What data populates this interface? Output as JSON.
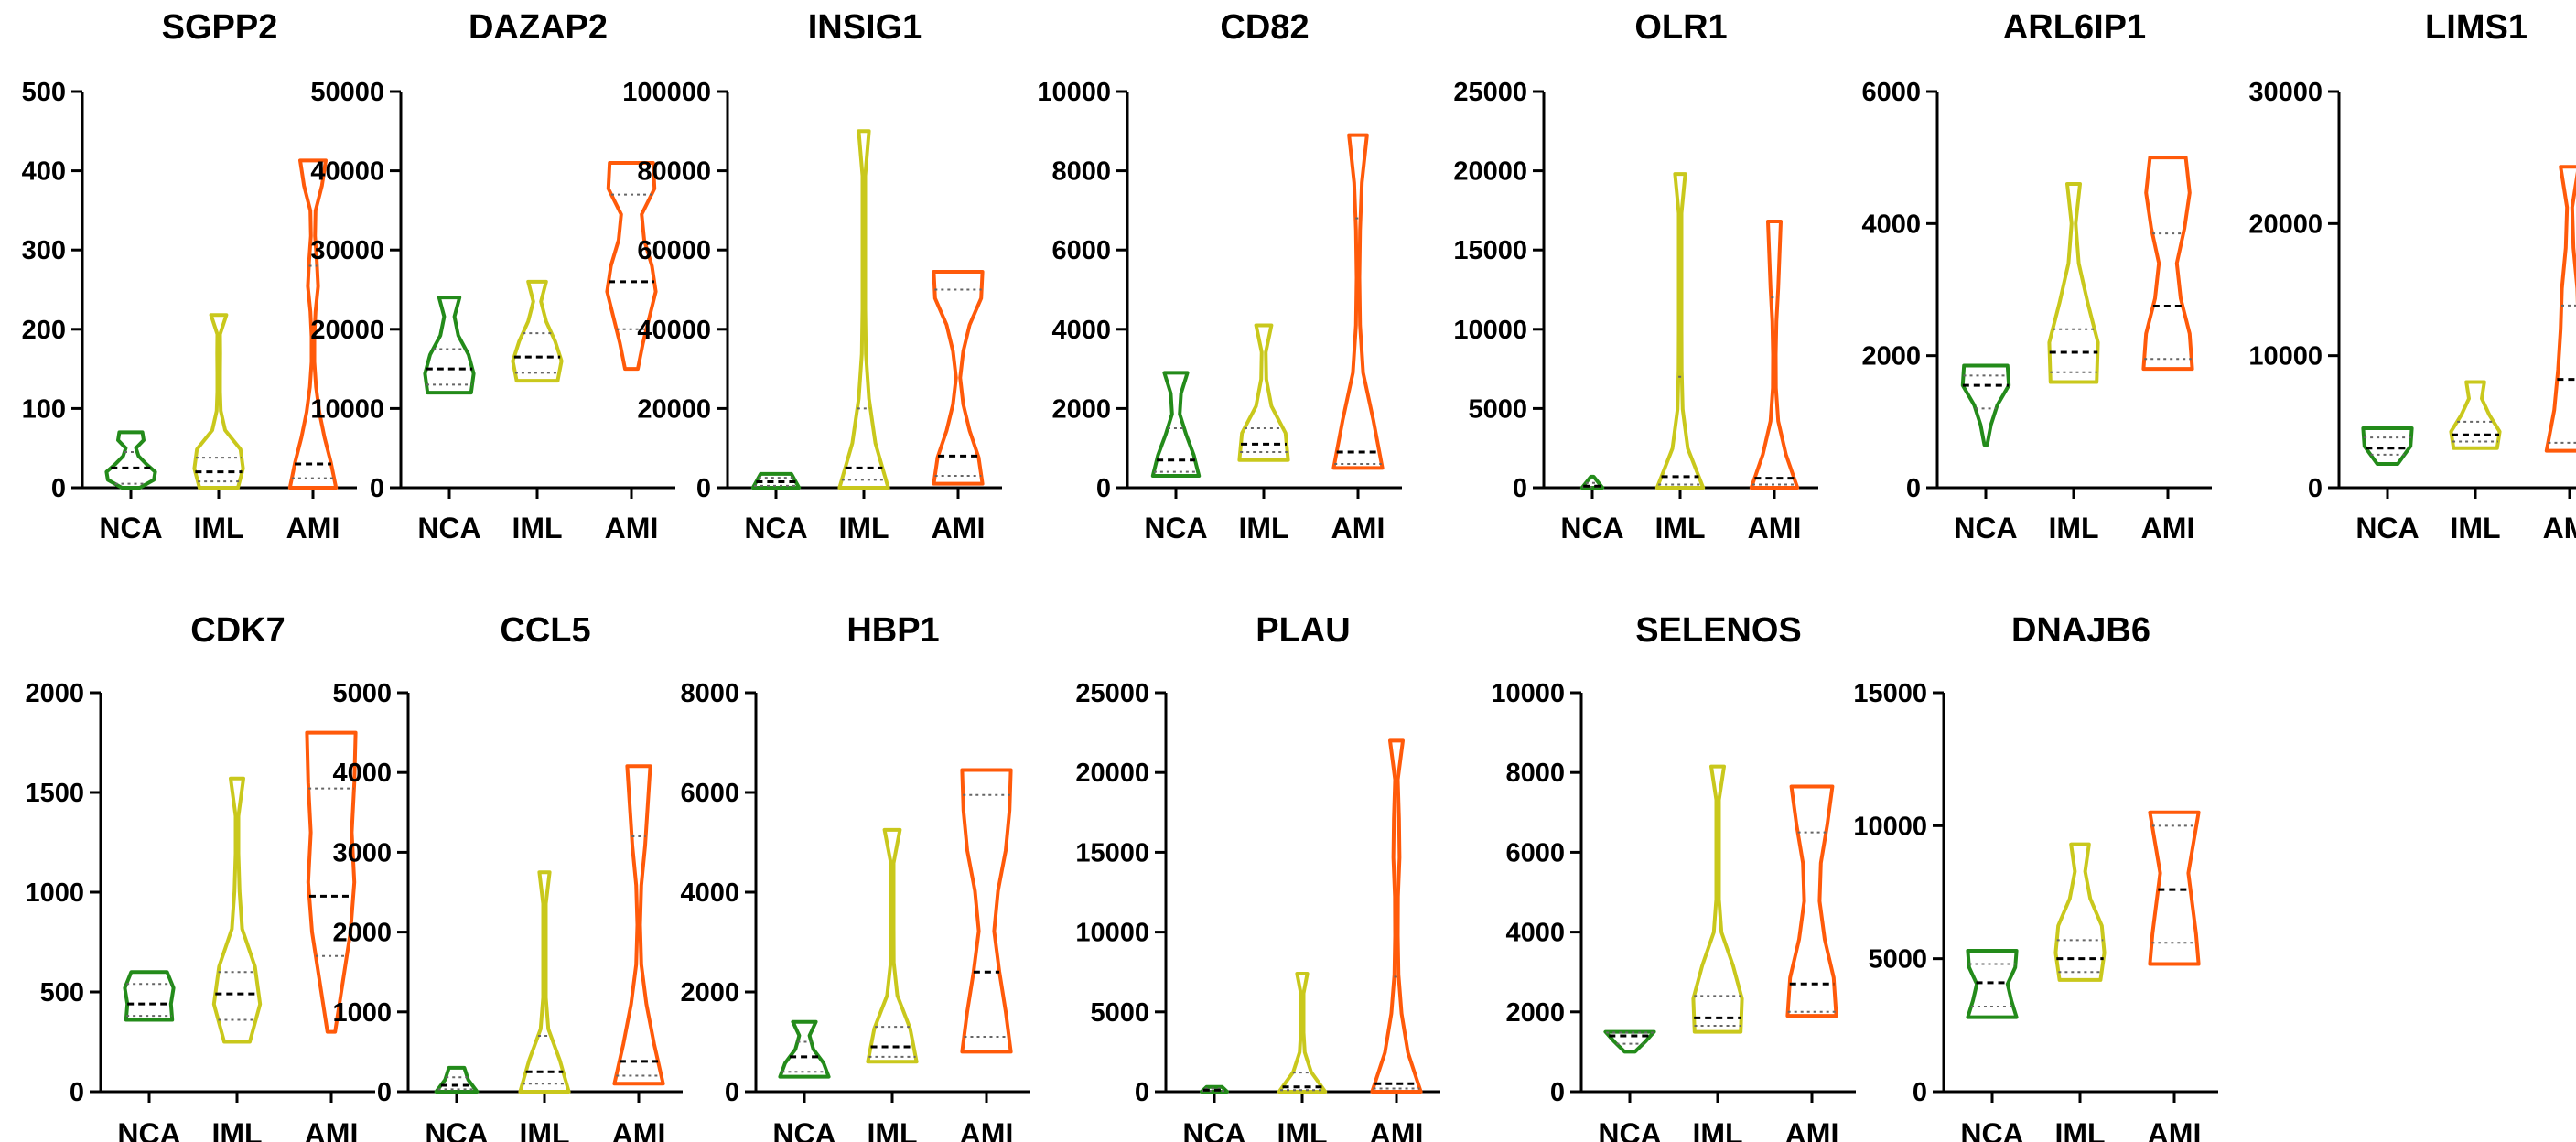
{
  "chart_data": [
    {
      "type": "violin",
      "title": "SGPP2",
      "categories": [
        "NCA",
        "IML",
        "AMI"
      ],
      "colors": [
        "#238b1a",
        "#c9c81c",
        "#ff5a0a"
      ],
      "ylim": [
        0,
        500
      ],
      "yticks": [
        0,
        100,
        200,
        300,
        400,
        500
      ],
      "series": [
        {
          "name": "NCA",
          "min": 0,
          "max": 70,
          "median": 25,
          "q1": 5,
          "q3": 45,
          "widths": [
            0.35,
            0.9,
            0.95,
            0.6,
            0.3,
            0.2,
            0.5,
            0.45
          ]
        },
        {
          "name": "IML",
          "min": 0,
          "max": 218,
          "median": 20,
          "q1": 8,
          "q3": 38,
          "widths": [
            0.75,
            0.95,
            0.85,
            0.25,
            0.08,
            0.05,
            0.04,
            0.06,
            0.05,
            0.3
          ]
        },
        {
          "name": "AMI",
          "min": 0,
          "max": 413,
          "median": 30,
          "q1": 12,
          "q3": 280,
          "widths": [
            0.9,
            0.7,
            0.45,
            0.25,
            0.12,
            0.05,
            0.04,
            0.1,
            0.2,
            0.15,
            0.08,
            0.1,
            0.35,
            0.5
          ]
        }
      ]
    },
    {
      "type": "violin",
      "title": "DAZAP2",
      "categories": [
        "NCA",
        "IML",
        "AMI"
      ],
      "colors": [
        "#238b1a",
        "#c9c81c",
        "#ff5a0a"
      ],
      "ylim": [
        0,
        50000
      ],
      "yticks": [
        0,
        10000,
        20000,
        30000,
        40000,
        50000
      ],
      "series": [
        {
          "name": "NCA",
          "min": 12000,
          "max": 24000,
          "median": 15000,
          "q1": 13000,
          "q3": 17500,
          "widths": [
            0.85,
            0.95,
            0.75,
            0.35,
            0.2,
            0.4
          ]
        },
        {
          "name": "IML",
          "min": 13500,
          "max": 26000,
          "median": 16500,
          "q1": 14500,
          "q3": 19500,
          "widths": [
            0.8,
            0.95,
            0.7,
            0.35,
            0.15,
            0.35
          ]
        },
        {
          "name": "AMI",
          "min": 15000,
          "max": 41000,
          "median": 26000,
          "q1": 20000,
          "q3": 37000,
          "widths": [
            0.25,
            0.45,
            0.7,
            0.95,
            0.8,
            0.5,
            0.4,
            0.9,
            0.85
          ]
        }
      ]
    },
    {
      "type": "violin",
      "title": "INSIG1",
      "categories": [
        "NCA",
        "IML",
        "AMI"
      ],
      "colors": [
        "#238b1a",
        "#c9c81c",
        "#ff5a0a"
      ],
      "ylim": [
        0,
        100000
      ],
      "yticks": [
        0,
        20000,
        40000,
        60000,
        80000,
        100000
      ],
      "series": [
        {
          "name": "NCA",
          "min": 0,
          "max": 3500,
          "median": 1500,
          "q1": 500,
          "q3": 2500,
          "widths": [
            0.9,
            0.6
          ]
        },
        {
          "name": "IML",
          "min": 0,
          "max": 90000,
          "median": 5000,
          "q1": 2000,
          "q3": 20000,
          "widths": [
            0.95,
            0.45,
            0.2,
            0.08,
            0.04,
            0.03,
            0.03,
            0.04,
            0.2
          ]
        },
        {
          "name": "AMI",
          "min": 1000,
          "max": 54500,
          "median": 8000,
          "q1": 3000,
          "q3": 50000,
          "widths": [
            0.95,
            0.8,
            0.45,
            0.2,
            0.08,
            0.2,
            0.45,
            0.9,
            0.95
          ]
        }
      ]
    },
    {
      "type": "violin",
      "title": "CD82",
      "categories": [
        "NCA",
        "IML",
        "AMI"
      ],
      "colors": [
        "#238b1a",
        "#c9c81c",
        "#ff5a0a"
      ],
      "ylim": [
        0,
        10000
      ],
      "yticks": [
        0,
        2000,
        4000,
        6000,
        8000,
        10000
      ],
      "series": [
        {
          "name": "NCA",
          "min": 300,
          "max": 2900,
          "median": 700,
          "q1": 400,
          "q3": 1500,
          "widths": [
            0.9,
            0.7,
            0.4,
            0.15,
            0.2,
            0.45
          ]
        },
        {
          "name": "IML",
          "min": 700,
          "max": 4100,
          "median": 1100,
          "q1": 900,
          "q3": 1500,
          "widths": [
            0.95,
            0.85,
            0.3,
            0.1,
            0.08,
            0.3
          ]
        },
        {
          "name": "AMI",
          "min": 500,
          "max": 8900,
          "median": 900,
          "q1": 600,
          "q3": 6800,
          "widths": [
            0.95,
            0.6,
            0.2,
            0.08,
            0.05,
            0.08,
            0.15,
            0.35
          ]
        }
      ]
    },
    {
      "type": "violin",
      "title": "OLR1",
      "categories": [
        "NCA",
        "IML",
        "AMI"
      ],
      "colors": [
        "#238b1a",
        "#c9c81c",
        "#ff5a0a"
      ],
      "ylim": [
        0,
        25000
      ],
      "yticks": [
        0,
        5000,
        10000,
        15000,
        20000,
        25000
      ],
      "series": [
        {
          "name": "NCA",
          "min": 0,
          "max": 700,
          "median": 100,
          "q1": 50,
          "q3": 300,
          "widths": [
            0.4,
            0.05
          ]
        },
        {
          "name": "IML",
          "min": 0,
          "max": 19800,
          "median": 700,
          "q1": 200,
          "q3": 7000,
          "widths": [
            0.9,
            0.3,
            0.1,
            0.06,
            0.04,
            0.04,
            0.03,
            0.04,
            0.2
          ]
        },
        {
          "name": "AMI",
          "min": 0,
          "max": 16800,
          "median": 600,
          "q1": 200,
          "q3": 12000,
          "widths": [
            0.9,
            0.45,
            0.15,
            0.06,
            0.05,
            0.08,
            0.15,
            0.2,
            0.25
          ]
        }
      ]
    },
    {
      "type": "violin",
      "title": "ARL6IP1",
      "categories": [
        "NCA",
        "IML",
        "AMI"
      ],
      "colors": [
        "#238b1a",
        "#c9c81c",
        "#ff5a0a"
      ],
      "ylim": [
        0,
        6000
      ],
      "yticks": [
        0,
        2000,
        4000,
        6000
      ],
      "series": [
        {
          "name": "NCA",
          "min": 650,
          "max": 1850,
          "median": 1550,
          "q1": 1200,
          "q3": 1700,
          "widths": [
            0.05,
            0.2,
            0.45,
            0.9,
            0.85
          ]
        },
        {
          "name": "IML",
          "min": 1600,
          "max": 4600,
          "median": 2050,
          "q1": 1750,
          "q3": 2400,
          "widths": [
            0.9,
            0.95,
            0.55,
            0.2,
            0.08,
            0.25
          ]
        },
        {
          "name": "AMI",
          "min": 1800,
          "max": 5000,
          "median": 2750,
          "q1": 1950,
          "q3": 3850,
          "widths": [
            0.95,
            0.85,
            0.5,
            0.35,
            0.65,
            0.85,
            0.7
          ]
        }
      ]
    },
    {
      "type": "violin",
      "title": "LIMS1",
      "categories": [
        "NCA",
        "IML",
        "AMI"
      ],
      "colors": [
        "#238b1a",
        "#c9c81c",
        "#ff5a0a"
      ],
      "ylim": [
        0,
        30000
      ],
      "yticks": [
        0,
        10000,
        20000,
        30000
      ],
      "series": [
        {
          "name": "NCA",
          "min": 1800,
          "max": 4500,
          "median": 3000,
          "q1": 2500,
          "q3": 3800,
          "widths": [
            0.4,
            0.9,
            0.95
          ]
        },
        {
          "name": "IML",
          "min": 3000,
          "max": 8000,
          "median": 4000,
          "q1": 3500,
          "q3": 5000,
          "widths": [
            0.85,
            0.95,
            0.55,
            0.25,
            0.35
          ]
        },
        {
          "name": "AMI",
          "min": 2800,
          "max": 24300,
          "median": 8200,
          "q1": 3400,
          "q3": 13800,
          "widths": [
            0.9,
            0.6,
            0.45,
            0.35,
            0.3,
            0.15,
            0.1,
            0.35
          ]
        }
      ]
    },
    {
      "type": "violin",
      "title": "CDK7",
      "categories": [
        "NCA",
        "IML",
        "AMI"
      ],
      "colors": [
        "#238b1a",
        "#c9c81c",
        "#ff5a0a"
      ],
      "ylim": [
        0,
        2000
      ],
      "yticks": [
        0,
        500,
        1000,
        1500,
        2000
      ],
      "series": [
        {
          "name": "NCA",
          "min": 360,
          "max": 600,
          "median": 440,
          "q1": 380,
          "q3": 540,
          "widths": [
            0.9,
            0.85,
            0.95,
            0.7
          ]
        },
        {
          "name": "IML",
          "min": 250,
          "max": 1570,
          "median": 490,
          "q1": 360,
          "q3": 600,
          "widths": [
            0.5,
            0.9,
            0.7,
            0.2,
            0.1,
            0.05,
            0.05,
            0.25
          ]
        },
        {
          "name": "AMI",
          "min": 300,
          "max": 1800,
          "median": 980,
          "q1": 680,
          "q3": 1520,
          "widths": [
            0.15,
            0.45,
            0.75,
            0.9,
            0.8,
            0.9,
            0.95
          ]
        }
      ]
    },
    {
      "type": "violin",
      "title": "CCL5",
      "categories": [
        "NCA",
        "IML",
        "AMI"
      ],
      "colors": [
        "#238b1a",
        "#c9c81c",
        "#ff5a0a"
      ],
      "ylim": [
        0,
        5000
      ],
      "yticks": [
        0,
        1000,
        2000,
        3000,
        4000,
        5000
      ],
      "series": [
        {
          "name": "NCA",
          "min": 0,
          "max": 300,
          "median": 80,
          "q1": 30,
          "q3": 180,
          "widths": [
            0.8,
            0.45,
            0.3
          ]
        },
        {
          "name": "IML",
          "min": 0,
          "max": 2750,
          "median": 250,
          "q1": 100,
          "q3": 700,
          "widths": [
            0.95,
            0.6,
            0.15,
            0.05,
            0.04,
            0.03,
            0.04,
            0.2
          ]
        },
        {
          "name": "AMI",
          "min": 100,
          "max": 4080,
          "median": 380,
          "q1": 200,
          "q3": 3200,
          "widths": [
            0.95,
            0.6,
            0.3,
            0.1,
            0.05,
            0.1,
            0.25,
            0.35,
            0.45
          ]
        }
      ]
    },
    {
      "type": "violin",
      "title": "HBP1",
      "categories": [
        "NCA",
        "IML",
        "AMI"
      ],
      "colors": [
        "#238b1a",
        "#c9c81c",
        "#ff5a0a"
      ],
      "ylim": [
        0,
        8000
      ],
      "yticks": [
        0,
        2000,
        4000,
        6000,
        8000
      ],
      "series": [
        {
          "name": "NCA",
          "min": 300,
          "max": 1400,
          "median": 700,
          "q1": 400,
          "q3": 1000,
          "widths": [
            0.95,
            0.75,
            0.35,
            0.2,
            0.45
          ]
        },
        {
          "name": "IML",
          "min": 600,
          "max": 5250,
          "median": 900,
          "q1": 700,
          "q3": 1300,
          "widths": [
            0.95,
            0.7,
            0.2,
            0.06,
            0.04,
            0.04,
            0.04,
            0.3
          ]
        },
        {
          "name": "AMI",
          "min": 800,
          "max": 6450,
          "median": 2400,
          "q1": 1100,
          "q3": 5950,
          "widths": [
            0.95,
            0.75,
            0.5,
            0.3,
            0.45,
            0.75,
            0.9,
            0.95
          ]
        }
      ]
    },
    {
      "type": "violin",
      "title": "PLAU",
      "categories": [
        "NCA",
        "IML",
        "AMI"
      ],
      "colors": [
        "#238b1a",
        "#c9c81c",
        "#ff5a0a"
      ],
      "ylim": [
        0,
        25000
      ],
      "yticks": [
        0,
        5000,
        10000,
        15000,
        20000,
        25000
      ],
      "series": [
        {
          "name": "NCA",
          "min": 0,
          "max": 300,
          "median": 100,
          "q1": 50,
          "q3": 200,
          "widths": [
            0.5,
            0.3
          ]
        },
        {
          "name": "IML",
          "min": 0,
          "max": 7400,
          "median": 300,
          "q1": 100,
          "q3": 1200,
          "widths": [
            0.9,
            0.35,
            0.1,
            0.05,
            0.04,
            0.04,
            0.2
          ]
        },
        {
          "name": "AMI",
          "min": 0,
          "max": 22000,
          "median": 500,
          "q1": 200,
          "q3": 7200,
          "widths": [
            0.95,
            0.45,
            0.2,
            0.08,
            0.04,
            0.06,
            0.12,
            0.1,
            0.05,
            0.25
          ]
        }
      ]
    },
    {
      "type": "violin",
      "title": "SELENOS",
      "categories": [
        "NCA",
        "IML",
        "AMI"
      ],
      "colors": [
        "#238b1a",
        "#c9c81c",
        "#ff5a0a"
      ],
      "ylim": [
        0,
        10000
      ],
      "yticks": [
        0,
        2000,
        4000,
        6000,
        8000,
        10000
      ],
      "series": [
        {
          "name": "NCA",
          "min": 1000,
          "max": 1500,
          "median": 1400,
          "q1": 1200,
          "q3": 1480,
          "widths": [
            0.2,
            0.6,
            0.95
          ]
        },
        {
          "name": "IML",
          "min": 1500,
          "max": 8150,
          "median": 1850,
          "q1": 1650,
          "q3": 2400,
          "widths": [
            0.9,
            0.95,
            0.6,
            0.15,
            0.05,
            0.04,
            0.04,
            0.04,
            0.25
          ]
        },
        {
          "name": "AMI",
          "min": 1900,
          "max": 7650,
          "median": 2700,
          "q1": 2000,
          "q3": 6500,
          "widths": [
            0.95,
            0.85,
            0.5,
            0.3,
            0.35,
            0.6,
            0.8
          ]
        }
      ]
    },
    {
      "type": "violin",
      "title": "DNAJB6",
      "categories": [
        "NCA",
        "IML",
        "AMI"
      ],
      "colors": [
        "#238b1a",
        "#c9c81c",
        "#ff5a0a"
      ],
      "ylim": [
        0,
        15000
      ],
      "yticks": [
        0,
        5000,
        10000,
        15000
      ],
      "series": [
        {
          "name": "NCA",
          "min": 2800,
          "max": 5300,
          "median": 4100,
          "q1": 3200,
          "q3": 4800,
          "widths": [
            0.95,
            0.75,
            0.6,
            0.9,
            0.95
          ]
        },
        {
          "name": "IML",
          "min": 4200,
          "max": 9300,
          "median": 5000,
          "q1": 4500,
          "q3": 5700,
          "widths": [
            0.8,
            0.95,
            0.85,
            0.4,
            0.2,
            0.35
          ]
        },
        {
          "name": "AMI",
          "min": 4800,
          "max": 10500,
          "median": 7600,
          "q1": 5600,
          "q3": 10000,
          "widths": [
            0.95,
            0.85,
            0.7,
            0.55,
            0.75,
            0.95
          ]
        }
      ]
    }
  ]
}
